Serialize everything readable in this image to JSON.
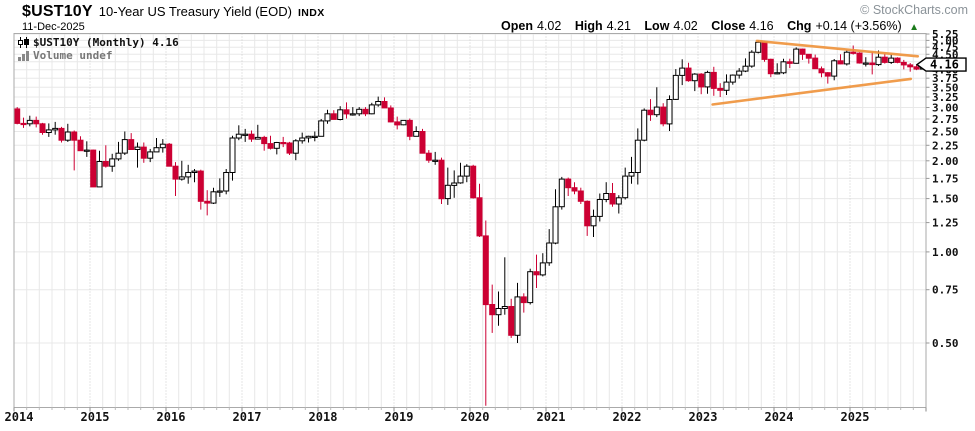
{
  "header": {
    "symbol": "$UST10Y",
    "title": "10-Year US Treasury Yield (EOD)",
    "exchange": "INDX",
    "date": "11-Dec-2025",
    "watermark": "© StockCharts.com",
    "ohlc_bar": {
      "items": [
        {
          "label": "Open",
          "value": "4.02"
        },
        {
          "label": "High",
          "value": "4.21"
        },
        {
          "label": "Low",
          "value": "4.02"
        },
        {
          "label": "Close",
          "value": "4.16"
        },
        {
          "label": "Chg",
          "value": "+0.14 (+3.56%)"
        }
      ],
      "arrow": "▲"
    }
  },
  "legend": {
    "primary": "$UST10Y (Monthly) 4.16",
    "secondary": "Volume undef"
  },
  "price_tag": "4.16",
  "colors": {
    "up_fill": "#ffffff",
    "up_stroke": "#000000",
    "down": "#cc0033",
    "trendline": "#ef9239",
    "grid": "#e8e8e8",
    "year_grid": "#c9c9c9",
    "border": "#aaaaaa",
    "tick": "#999999",
    "arrow_green": "#1b7a1b"
  },
  "chart_data": {
    "type": "candlestick",
    "timeframe": "Monthly",
    "scale": "log",
    "start": "2014-01",
    "end": "2025-12",
    "ylim": [
      0.305,
      5.25
    ],
    "y_ticks": [
      "5.25",
      "5.00",
      "4.75",
      "4.50",
      "4.25",
      "4.00",
      "3.75",
      "3.50",
      "3.25",
      "3.00",
      "2.75",
      "2.50",
      "2.25",
      "2.00",
      "1.75",
      "1.50",
      "1.25",
      "1.00",
      "0.75",
      "0.50"
    ],
    "x_ticks": [
      "2014",
      "2015",
      "2016",
      "2017",
      "2018",
      "2019",
      "2020",
      "2021",
      "2022",
      "2023",
      "2024",
      "2025"
    ],
    "ohlc": [
      [
        2.97,
        3.01,
        2.64,
        2.66
      ],
      [
        2.66,
        2.78,
        2.57,
        2.65
      ],
      [
        2.65,
        2.82,
        2.6,
        2.72
      ],
      [
        2.72,
        2.8,
        2.58,
        2.65
      ],
      [
        2.65,
        2.67,
        2.44,
        2.48
      ],
      [
        2.48,
        2.66,
        2.4,
        2.53
      ],
      [
        2.53,
        2.69,
        2.44,
        2.56
      ],
      [
        2.56,
        2.59,
        2.3,
        2.34
      ],
      [
        2.34,
        2.65,
        2.31,
        2.49
      ],
      [
        2.49,
        2.52,
        1.86,
        2.34
      ],
      [
        2.34,
        2.41,
        2.16,
        2.16
      ],
      [
        2.16,
        2.32,
        2.06,
        2.17
      ],
      [
        2.17,
        2.18,
        1.64,
        1.64
      ],
      [
        1.64,
        2.16,
        1.65,
        1.99
      ],
      [
        1.99,
        2.25,
        1.9,
        1.92
      ],
      [
        1.92,
        2.11,
        1.84,
        2.03
      ],
      [
        2.03,
        2.31,
        2.0,
        2.12
      ],
      [
        2.12,
        2.5,
        2.09,
        2.35
      ],
      [
        2.35,
        2.47,
        2.18,
        2.18
      ],
      [
        2.18,
        2.3,
        1.9,
        2.22
      ],
      [
        2.22,
        2.3,
        1.97,
        2.04
      ],
      [
        2.04,
        2.19,
        1.98,
        2.14
      ],
      [
        2.14,
        2.38,
        2.14,
        2.21
      ],
      [
        2.21,
        2.36,
        2.13,
        2.27
      ],
      [
        2.27,
        2.29,
        1.94,
        1.92
      ],
      [
        1.92,
        1.98,
        1.53,
        1.74
      ],
      [
        1.74,
        2.0,
        1.72,
        1.77
      ],
      [
        1.77,
        1.94,
        1.68,
        1.83
      ],
      [
        1.83,
        1.88,
        1.7,
        1.85
      ],
      [
        1.85,
        1.87,
        1.38,
        1.47
      ],
      [
        1.47,
        1.6,
        1.32,
        1.45
      ],
      [
        1.45,
        1.63,
        1.44,
        1.58
      ],
      [
        1.58,
        1.75,
        1.52,
        1.59
      ],
      [
        1.59,
        1.88,
        1.55,
        1.83
      ],
      [
        1.83,
        2.42,
        1.72,
        2.38
      ],
      [
        2.38,
        2.62,
        2.34,
        2.45
      ],
      [
        2.45,
        2.55,
        2.31,
        2.45
      ],
      [
        2.45,
        2.52,
        2.31,
        2.36
      ],
      [
        2.36,
        2.63,
        2.35,
        2.39
      ],
      [
        2.39,
        2.42,
        2.16,
        2.28
      ],
      [
        2.28,
        2.42,
        2.18,
        2.2
      ],
      [
        2.2,
        2.31,
        2.1,
        2.3
      ],
      [
        2.3,
        2.4,
        2.22,
        2.29
      ],
      [
        2.29,
        2.31,
        2.09,
        2.12
      ],
      [
        2.12,
        2.36,
        2.01,
        2.33
      ],
      [
        2.33,
        2.48,
        2.28,
        2.38
      ],
      [
        2.38,
        2.42,
        2.3,
        2.41
      ],
      [
        2.41,
        2.5,
        2.32,
        2.41
      ],
      [
        2.41,
        2.75,
        2.41,
        2.71
      ],
      [
        2.71,
        2.95,
        2.65,
        2.86
      ],
      [
        2.86,
        2.94,
        2.74,
        2.74
      ],
      [
        2.74,
        3.03,
        2.72,
        2.95
      ],
      [
        2.95,
        3.12,
        2.76,
        2.86
      ],
      [
        2.86,
        3.01,
        2.82,
        2.86
      ],
      [
        2.86,
        3.01,
        2.81,
        2.96
      ],
      [
        2.96,
        3.01,
        2.81,
        2.86
      ],
      [
        2.86,
        3.11,
        2.85,
        3.06
      ],
      [
        3.06,
        3.26,
        3.02,
        3.14
      ],
      [
        3.14,
        3.24,
        2.99,
        2.99
      ],
      [
        2.99,
        3.05,
        2.68,
        2.69
      ],
      [
        2.69,
        2.8,
        2.54,
        2.63
      ],
      [
        2.63,
        2.72,
        2.62,
        2.72
      ],
      [
        2.72,
        2.76,
        2.34,
        2.41
      ],
      [
        2.41,
        2.6,
        2.43,
        2.5
      ],
      [
        2.5,
        2.55,
        2.12,
        2.12
      ],
      [
        2.12,
        2.17,
        1.97,
        2.01
      ],
      [
        2.01,
        2.14,
        1.94,
        2.01
      ],
      [
        2.01,
        2.05,
        1.44,
        1.5
      ],
      [
        1.5,
        1.9,
        1.43,
        1.66
      ],
      [
        1.66,
        1.86,
        1.51,
        1.69
      ],
      [
        1.69,
        1.97,
        1.68,
        1.78
      ],
      [
        1.78,
        1.95,
        1.7,
        1.92
      ],
      [
        1.92,
        1.94,
        1.5,
        1.51
      ],
      [
        1.51,
        1.68,
        1.12,
        1.13
      ],
      [
        1.13,
        1.27,
        0.31,
        0.67
      ],
      [
        0.67,
        0.78,
        0.54,
        0.62
      ],
      [
        0.62,
        0.74,
        0.57,
        0.65
      ],
      [
        0.65,
        0.96,
        0.62,
        0.66
      ],
      [
        0.66,
        0.7,
        0.52,
        0.53
      ],
      [
        0.53,
        0.79,
        0.5,
        0.71
      ],
      [
        0.71,
        0.73,
        0.63,
        0.68
      ],
      [
        0.68,
        0.88,
        0.67,
        0.86
      ],
      [
        0.86,
        0.98,
        0.76,
        0.84
      ],
      [
        0.84,
        0.99,
        0.83,
        0.92
      ],
      [
        0.92,
        1.19,
        0.9,
        1.07
      ],
      [
        1.07,
        1.61,
        1.06,
        1.41
      ],
      [
        1.41,
        1.77,
        1.38,
        1.74
      ],
      [
        1.74,
        1.76,
        1.53,
        1.63
      ],
      [
        1.63,
        1.7,
        1.55,
        1.59
      ],
      [
        1.59,
        1.63,
        1.44,
        1.47
      ],
      [
        1.47,
        1.48,
        1.13,
        1.22
      ],
      [
        1.22,
        1.38,
        1.12,
        1.31
      ],
      [
        1.31,
        1.56,
        1.26,
        1.49
      ],
      [
        1.49,
        1.7,
        1.46,
        1.56
      ],
      [
        1.56,
        1.69,
        1.41,
        1.44
      ],
      [
        1.44,
        1.54,
        1.34,
        1.51
      ],
      [
        1.51,
        1.9,
        1.49,
        1.78
      ],
      [
        1.78,
        2.06,
        1.68,
        1.83
      ],
      [
        1.83,
        2.56,
        1.67,
        2.34
      ],
      [
        2.34,
        2.98,
        2.32,
        2.94
      ],
      [
        2.94,
        3.2,
        2.71,
        2.84
      ],
      [
        2.84,
        3.5,
        2.79,
        3.01
      ],
      [
        3.01,
        3.1,
        2.6,
        2.65
      ],
      [
        2.65,
        3.29,
        2.51,
        3.19
      ],
      [
        3.19,
        4.02,
        3.18,
        3.83
      ],
      [
        3.83,
        4.33,
        3.56,
        4.05
      ],
      [
        4.05,
        4.22,
        3.65,
        3.68
      ],
      [
        3.68,
        3.9,
        3.4,
        3.87
      ],
      [
        3.87,
        3.9,
        3.32,
        3.51
      ],
      [
        3.51,
        3.97,
        3.33,
        3.92
      ],
      [
        3.92,
        4.09,
        3.28,
        3.47
      ],
      [
        3.47,
        3.61,
        3.25,
        3.42
      ],
      [
        3.42,
        3.86,
        3.3,
        3.64
      ],
      [
        3.64,
        3.86,
        3.57,
        3.84
      ],
      [
        3.84,
        4.05,
        3.74,
        3.96
      ],
      [
        3.96,
        4.36,
        3.93,
        4.11
      ],
      [
        4.11,
        4.64,
        4.06,
        4.57
      ],
      [
        4.57,
        4.99,
        4.53,
        4.93
      ],
      [
        4.93,
        4.95,
        4.25,
        4.33
      ],
      [
        4.33,
        4.35,
        3.78,
        3.88
      ],
      [
        3.88,
        4.2,
        3.86,
        3.91
      ],
      [
        3.91,
        4.35,
        3.87,
        4.25
      ],
      [
        4.25,
        4.35,
        4.05,
        4.2
      ],
      [
        4.2,
        4.74,
        4.19,
        4.68
      ],
      [
        4.68,
        4.7,
        4.31,
        4.5
      ],
      [
        4.5,
        4.5,
        4.19,
        4.37
      ],
      [
        4.37,
        4.49,
        4.03,
        4.03
      ],
      [
        4.03,
        4.1,
        3.78,
        3.91
      ],
      [
        3.91,
        3.93,
        3.6,
        3.81
      ],
      [
        3.81,
        4.34,
        3.69,
        4.28
      ],
      [
        4.28,
        4.5,
        4.17,
        4.18
      ],
      [
        4.18,
        4.63,
        4.13,
        4.57
      ],
      [
        4.57,
        4.81,
        4.49,
        4.54
      ],
      [
        4.54,
        4.57,
        4.19,
        4.21
      ],
      [
        4.21,
        4.4,
        4.1,
        4.21
      ],
      [
        4.21,
        4.59,
        3.86,
        4.16
      ],
      [
        4.16,
        4.63,
        4.12,
        4.4
      ],
      [
        4.4,
        4.52,
        4.19,
        4.23
      ],
      [
        4.23,
        4.5,
        4.18,
        4.37
      ],
      [
        4.37,
        4.4,
        4.2,
        4.23
      ],
      [
        4.23,
        4.31,
        4.01,
        4.15
      ],
      [
        4.15,
        4.21,
        3.94,
        4.09
      ],
      [
        4.09,
        4.16,
        3.99,
        4.02
      ],
      [
        4.02,
        4.21,
        4.02,
        4.16
      ]
    ],
    "annotations": [
      {
        "type": "trendline",
        "from": {
          "m": 117.3,
          "v": 4.98
        },
        "to": {
          "m": 142.7,
          "v": 4.43
        }
      },
      {
        "type": "trendline",
        "from": {
          "m": 110.3,
          "v": 3.07
        },
        "to": {
          "m": 141.6,
          "v": 3.73
        }
      }
    ]
  }
}
